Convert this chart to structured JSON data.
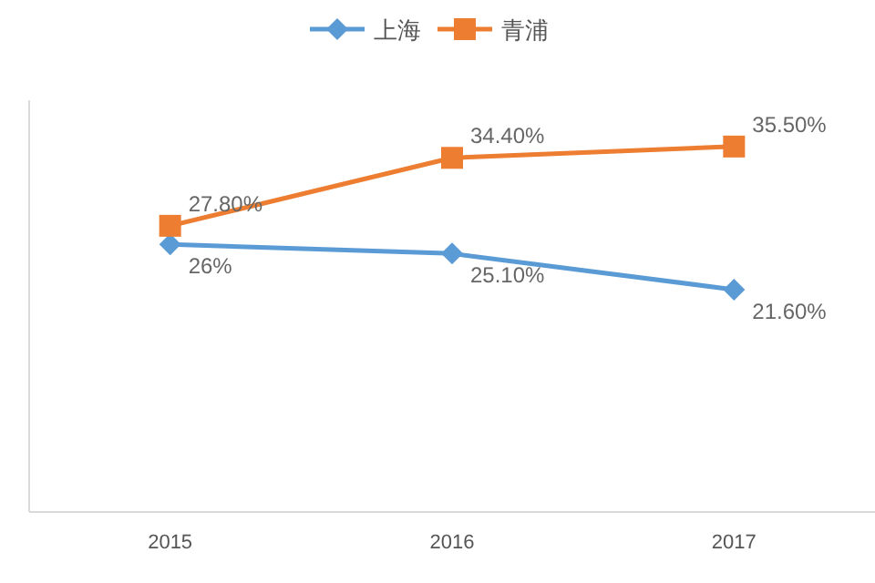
{
  "chart_data": {
    "type": "line",
    "categories": [
      "2015",
      "2016",
      "2017"
    ],
    "ylim": [
      0,
      40
    ],
    "tick_labels": "x",
    "legend": "top",
    "series": [
      {
        "name": "上海",
        "color": "#5b9bd5",
        "marker": "diamond",
        "values": [
          26,
          25.1,
          21.6
        ],
        "value_labels": [
          "26%",
          "25.10%",
          "21.60%"
        ]
      },
      {
        "name": "青浦",
        "color": "#ed7d31",
        "marker": "square",
        "values": [
          27.8,
          34.4,
          35.5
        ],
        "value_labels": [
          "27.80%",
          "34.40%",
          "35.50%"
        ]
      }
    ]
  }
}
